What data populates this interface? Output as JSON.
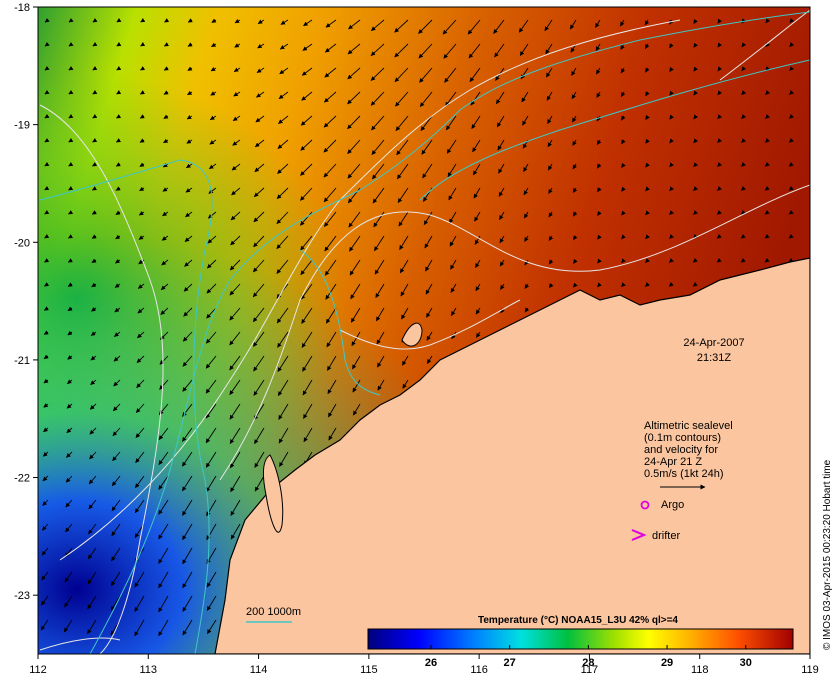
{
  "map": {
    "lon_ticks": [
      "112",
      "113",
      "114",
      "115",
      "116",
      "117",
      "118",
      "119"
    ],
    "lat_ticks": [
      "-18",
      "-19",
      "-20",
      "-21",
      "-22",
      "-23"
    ],
    "lon_range": [
      112,
      119
    ],
    "lat_range": [
      -23.5,
      -18
    ],
    "colors": {
      "land": "#fbc59f",
      "sst_cold": "#00007f",
      "sst_warm": "#a00000",
      "bathymetry_contour": "#3fc7c7",
      "sealevel_contour": "#e6e6e6",
      "marker": "#e000e0"
    }
  },
  "datetime": {
    "date": "24-Apr-2007",
    "time": "21:31Z"
  },
  "legend": {
    "altimetry_lines": [
      "Altimetric sealevel",
      "(0.1m contours)",
      "and velocity for",
      "24-Apr 21 Z",
      "0.5m/s (1kt 24h)"
    ],
    "argo_label": "Argo",
    "drifter_label": "drifter",
    "bathymetry_label": "200  1000m"
  },
  "colorbar": {
    "title": "Temperature (°C) NOAA15_L3U 42% ql>=4",
    "tick_labels": [
      "26",
      "27",
      "28",
      "29",
      "30"
    ],
    "range": [
      25.2,
      30.6
    ]
  },
  "credit": "© IMOS 03-Apr-2015 00:23:20 Hobart time"
}
